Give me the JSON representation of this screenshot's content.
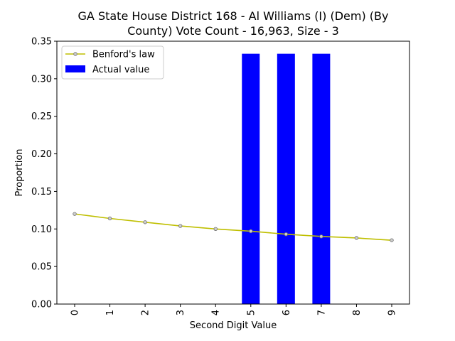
{
  "chart_data": {
    "type": "bar",
    "title_line1": "GA State House District 168 - Al Williams (I) (Dem) (By",
    "title_line2": "County) Vote Count - 16,963, Size - 3",
    "xlabel": "Second Digit Value",
    "ylabel": "Proportion",
    "categories": [
      "0",
      "1",
      "2",
      "3",
      "4",
      "5",
      "6",
      "7",
      "8",
      "9"
    ],
    "ylim": [
      0,
      0.35
    ],
    "yticks": [
      "0.00",
      "0.05",
      "0.10",
      "0.15",
      "0.20",
      "0.25",
      "0.30",
      "0.35"
    ],
    "legend_position": "top-left",
    "series": [
      {
        "name": "Benford's law",
        "type": "line",
        "color": "#bfbf00",
        "values": [
          0.12,
          0.114,
          0.109,
          0.104,
          0.1,
          0.097,
          0.093,
          0.09,
          0.088,
          0.085
        ]
      },
      {
        "name": "Actual value",
        "type": "bar",
        "color": "#0000ff",
        "values": [
          0,
          0,
          0,
          0,
          0,
          0.3333,
          0.3333,
          0.3333,
          0,
          0
        ]
      }
    ]
  }
}
